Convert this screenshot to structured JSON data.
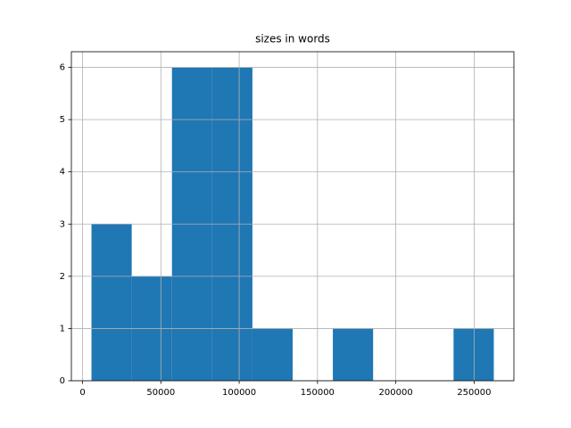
{
  "chart_data": {
    "type": "histogram",
    "title": "sizes in words",
    "bins": [
      5708,
      31393,
      57078,
      82763,
      108448,
      134133,
      159818,
      185503,
      211188,
      236873,
      262557
    ],
    "counts": [
      3,
      2,
      6,
      6,
      1,
      0,
      1,
      0,
      0,
      1
    ],
    "color": "#1f77b4",
    "xlim": [
      -7134,
      275399
    ],
    "xticks": [
      0,
      50000,
      100000,
      150000,
      200000,
      250000
    ],
    "ylim": [
      0,
      6.3
    ],
    "yticks": [
      0,
      1,
      2,
      3,
      4,
      5,
      6
    ],
    "grid": true
  }
}
